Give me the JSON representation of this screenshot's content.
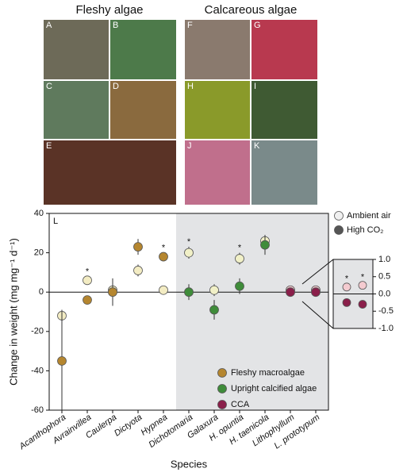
{
  "panels": {
    "left_title": "Fleshy algae",
    "right_title": "Calcareous algae",
    "letters": [
      "A",
      "B",
      "C",
      "D",
      "E",
      "F",
      "G",
      "H",
      "I",
      "J",
      "K"
    ]
  },
  "chart_data": {
    "type": "scatter",
    "panel_label": "L",
    "xlabel": "Species",
    "ylabel": "Change in weight (mg mg⁻¹ d⁻¹)",
    "categories": [
      "Acanthophora",
      "Avrainvillea",
      "Caulerpa",
      "Dictyota",
      "Hypnea",
      "Dichotomaria",
      "Galaxura",
      "H. opuntia",
      "H. taenicola",
      "Lithophyllum",
      "L. prototypum"
    ],
    "category_group": [
      0,
      0,
      0,
      0,
      0,
      1,
      1,
      1,
      1,
      2,
      2
    ],
    "groups": [
      {
        "name": "Fleshy macroalgae",
        "color": "#b5862f",
        "light_color": "#f3ecc3"
      },
      {
        "name": "Upright calcified algae",
        "color": "#3f8c3a",
        "light_color": "#f1f0c7"
      },
      {
        "name": "CCA",
        "color": "#8a1f4a",
        "light_color": "#f4cbd0"
      }
    ],
    "series": [
      {
        "name": "Ambient air",
        "color": "#f0f0f0",
        "shade": "light",
        "values": [
          -12,
          6,
          1,
          11,
          1,
          20,
          1,
          17,
          26,
          1,
          1
        ],
        "errors": [
          3,
          2,
          5,
          3,
          1,
          3,
          3,
          3,
          3,
          1,
          1
        ]
      },
      {
        "name": "High CO₂",
        "color": "#555555",
        "shade": "dark",
        "values": [
          -35,
          -4,
          0,
          23,
          18,
          0,
          -9,
          3,
          24,
          0,
          0
        ],
        "errors": [
          25,
          1,
          7,
          4,
          2,
          4,
          5,
          4,
          5,
          1,
          1
        ]
      }
    ],
    "significance_labels": [
      null,
      "*",
      null,
      null,
      "*",
      "*",
      null,
      "*",
      null,
      null,
      null
    ],
    "ylim": [
      -60,
      40
    ],
    "yticks": [
      -60,
      -40,
      -20,
      0,
      20,
      40
    ],
    "shade_from_category": 5,
    "shade_color": "#e3e4e6",
    "inset": {
      "category_group": [
        2,
        2
      ],
      "series": [
        {
          "values": [
            0.2,
            0.25
          ]
        },
        {
          "values": [
            -0.25,
            -0.3
          ]
        }
      ],
      "significance_labels": [
        "*",
        "*"
      ],
      "ylim": [
        -1,
        1
      ],
      "yticks": [
        {
          "value": -1,
          "label": "-1.0"
        },
        -0.5,
        {
          "value": 0,
          "label": "0.0"
        },
        0.5,
        {
          "value": 1,
          "label": "1.0"
        }
      ]
    }
  }
}
